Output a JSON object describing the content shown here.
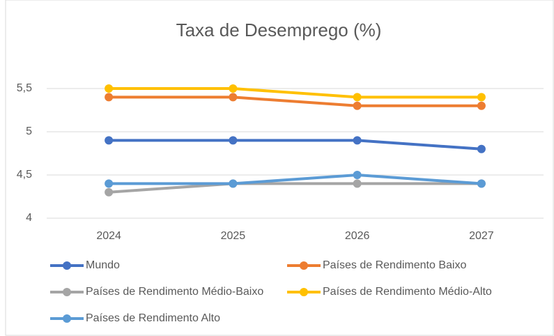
{
  "chart_data": {
    "type": "line",
    "title": "Taxa de Desemprego (%)",
    "categories": [
      "2024",
      "2025",
      "2026",
      "2027"
    ],
    "series": [
      {
        "name": "Mundo",
        "color": "#4472c4",
        "values": [
          4.9,
          4.9,
          4.9,
          4.8
        ]
      },
      {
        "name": "Países de Rendimento Baixo",
        "color": "#ed7d31",
        "values": [
          5.4,
          5.4,
          5.3,
          5.3
        ]
      },
      {
        "name": "Países de Rendimento Médio-Baixo",
        "color": "#a5a5a5",
        "values": [
          4.3,
          4.4,
          4.4,
          4.4
        ]
      },
      {
        "name": "Países de Rendimento Médio-Alto",
        "color": "#ffc000",
        "values": [
          5.5,
          5.5,
          5.4,
          5.4
        ]
      },
      {
        "name": "Países de Rendimento Alto",
        "color": "#5b9bd5",
        "values": [
          4.4,
          4.4,
          4.5,
          4.4
        ]
      }
    ],
    "ylim": [
      4,
      6
    ],
    "yticks": [
      4,
      {
        "value": 4.5,
        "label": "4,5"
      },
      5,
      {
        "value": 5.5,
        "label": "5,5"
      }
    ],
    "grid": true
  }
}
